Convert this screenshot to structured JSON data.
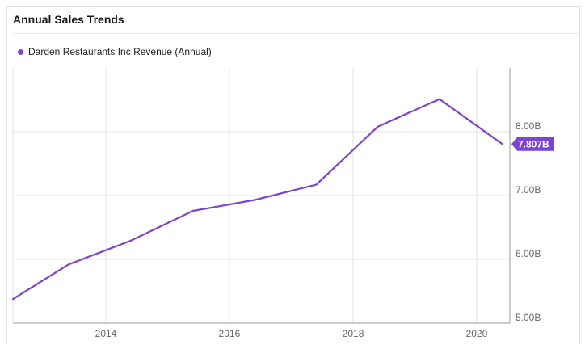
{
  "header": {
    "title": "Annual Sales Trends"
  },
  "legend": {
    "label": "Darden Restaurants Inc Revenue (Annual)"
  },
  "colors": {
    "series": "#7b45d1",
    "grid": "#e3e3e3",
    "axis": "#999999"
  },
  "chart_data": {
    "type": "line",
    "title": "Annual Sales Trends",
    "xlabel": "",
    "ylabel": "",
    "x": [
      "2012-05-27",
      "2013-05-26",
      "2014-05-25",
      "2015-05-31",
      "2016-05-29",
      "2017-05-28",
      "2018-05-27",
      "2019-05-26",
      "2020-05-31"
    ],
    "series": [
      {
        "name": "Darden Restaurants Inc Revenue (Annual)",
        "values": [
          5.32,
          5.92,
          6.29,
          6.76,
          6.93,
          7.17,
          8.08,
          8.51,
          7.807
        ]
      }
    ],
    "xticks": [
      "2014",
      "2016",
      "2018",
      "2020"
    ],
    "yticks": [
      "5.00B",
      "6.00B",
      "7.00B",
      "8.00B"
    ],
    "ylim": [
      5.0,
      9.0
    ],
    "xlim": [
      "2012-07-01",
      "2020-07-15"
    ],
    "y_axis_position": "right",
    "grid": true,
    "legend_position": "top-left",
    "last_value_label": "7.807B"
  }
}
